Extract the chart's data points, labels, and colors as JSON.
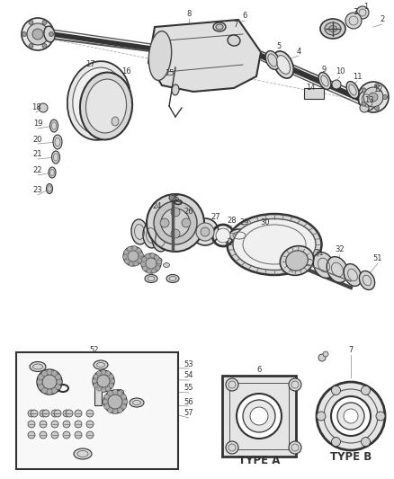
{
  "bg_color": "#ffffff",
  "fig_width": 4.38,
  "fig_height": 5.33,
  "dpi": 100,
  "line_color": "#444444",
  "text_color": "#333333",
  "annotation_fontsize": 6.0,
  "type_fontsize": 8.5
}
